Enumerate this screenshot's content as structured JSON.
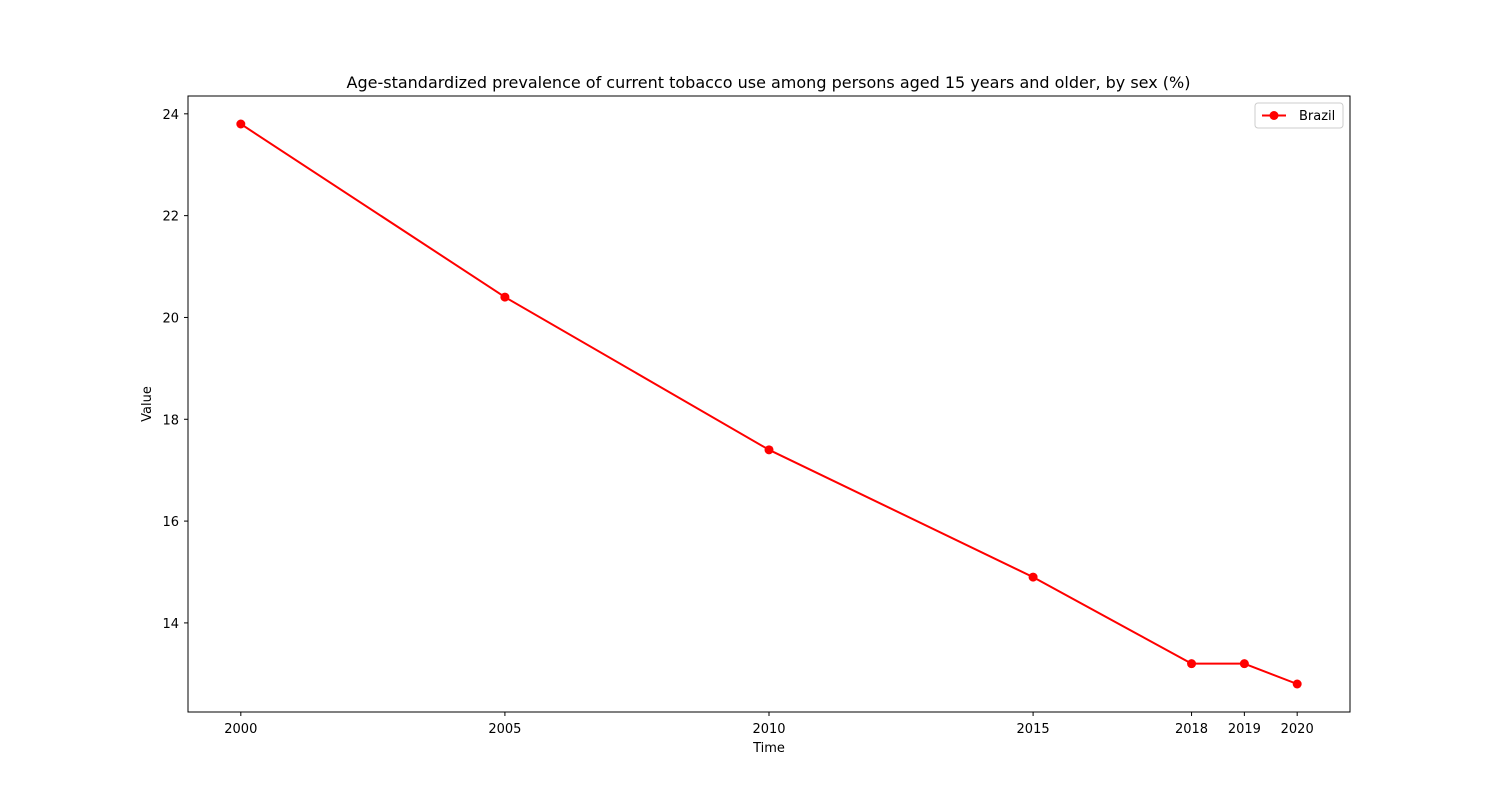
{
  "chart_data": {
    "type": "line",
    "title": "Age-standardized prevalence of current tobacco use among persons aged 15 years and older, by sex (%)",
    "xlabel": "Time",
    "ylabel": "Value",
    "x": [
      2000,
      2005,
      2010,
      2015,
      2018,
      2019,
      2020
    ],
    "xticks": [
      "2000",
      "2005",
      "2010",
      "2015",
      "2018",
      "2019",
      "2020"
    ],
    "yticks": [
      14,
      16,
      18,
      20,
      22,
      24
    ],
    "ylim": [
      12.25,
      24.35
    ],
    "xlim": [
      1999,
      2021
    ],
    "grid": false,
    "legend_position": "top-right",
    "series": [
      {
        "name": "Brazil",
        "color": "#ff0000",
        "marker": "circle",
        "values": [
          23.8,
          20.4,
          17.4,
          14.9,
          13.2,
          13.2,
          12.8
        ]
      }
    ]
  }
}
